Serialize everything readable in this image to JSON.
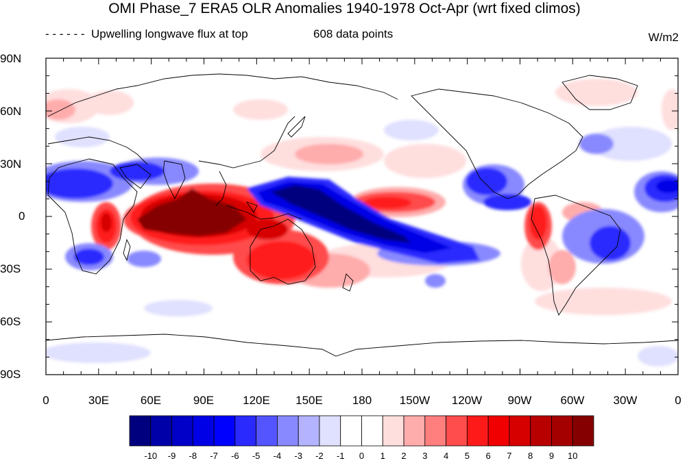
{
  "header": {
    "title": "OMI Phase_7 ERA5 OLR Anomalies 1940-1978 Oct-Apr (wrt fixed climos)",
    "legend_line": "- - - - - -  Upwelling longwave flux at top",
    "data_points": "608 data points",
    "units": "W/m2"
  },
  "axes": {
    "y_ticks": [
      "90N",
      "60N",
      "30N",
      "0",
      "30S",
      "60S",
      "90S"
    ],
    "x_ticks": [
      "0",
      "30E",
      "60E",
      "90E",
      "120E",
      "150E",
      "180",
      "150W",
      "120W",
      "90W",
      "60W",
      "30W",
      "0"
    ]
  },
  "colorbar": {
    "labels": [
      "-10",
      "-9",
      "-8",
      "-7",
      "-6",
      "-5",
      "-4",
      "-3",
      "-2",
      "-1",
      "0",
      "1",
      "2",
      "3",
      "4",
      "5",
      "6",
      "7",
      "8",
      "9",
      "10"
    ],
    "colors": [
      "#00007f",
      "#0000a8",
      "#0000c8",
      "#0000e6",
      "#0000ff",
      "#2a2aff",
      "#5555ff",
      "#8989ff",
      "#b3b3ff",
      "#e0e0ff",
      "#ffffff",
      "#ffffff",
      "#ffdede",
      "#ffacac",
      "#ff7f7f",
      "#ff4c4c",
      "#ff1a1a",
      "#f00000",
      "#d70000",
      "#b80000",
      "#a50000",
      "#850000"
    ]
  },
  "colors": {
    "deep_red": "#850000",
    "red": "#ff1a1a",
    "light_red": "#ffacac",
    "deep_blue": "#00007f",
    "blue": "#2a2aff",
    "light_blue": "#b3b3ff"
  }
}
